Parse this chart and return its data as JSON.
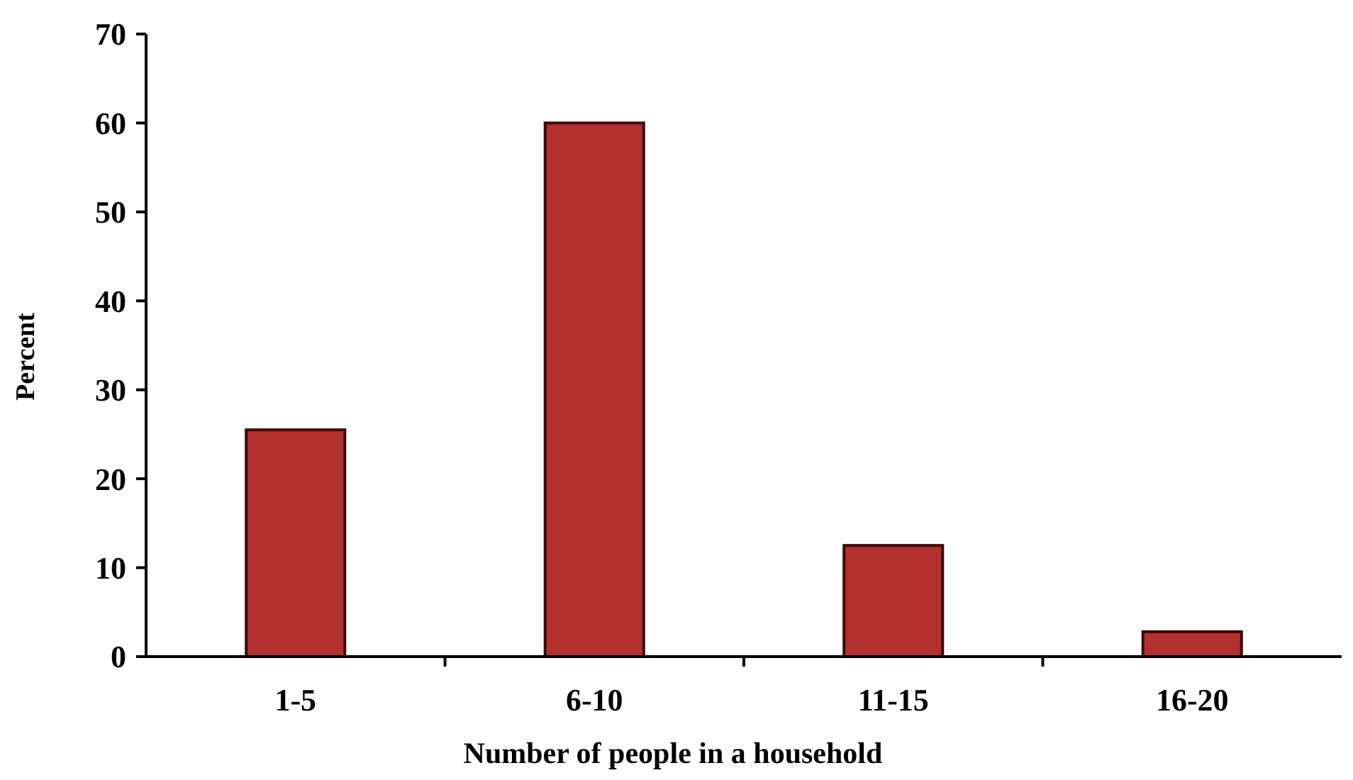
{
  "chart_data": {
    "type": "bar",
    "xlabel": "Number of people in a household",
    "ylabel": "Percent",
    "categories": [
      "1-5",
      "6-10",
      "11-15",
      "16-20"
    ],
    "values": [
      25.5,
      60,
      12.5,
      2.8
    ],
    "color": "#b3302e",
    "ylim": [
      0,
      70
    ],
    "yticks": [
      0,
      10,
      20,
      30,
      40,
      50,
      60,
      70
    ],
    "grid": false
  }
}
